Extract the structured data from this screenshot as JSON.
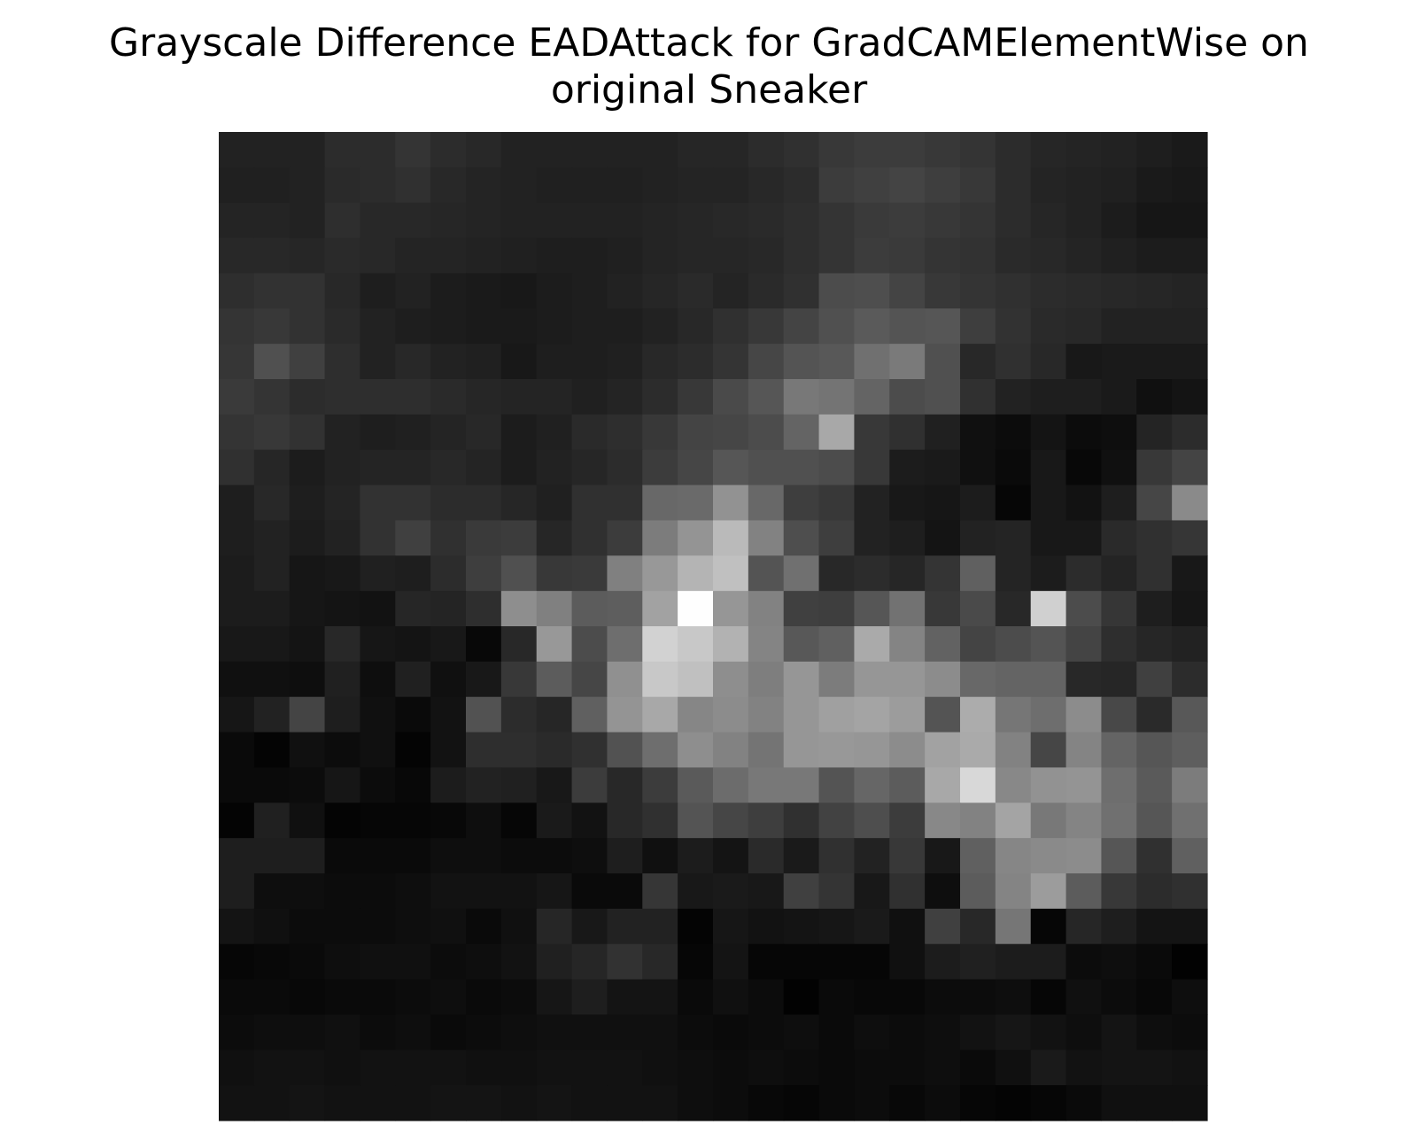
{
  "chart_data": {
    "type": "heatmap",
    "title_lines": [
      "Grayscale Difference EADAttack for GradCAMElementWise on",
      "original Sneaker"
    ],
    "title": "Grayscale Difference EADAttack for GradCAMElementWise on original Sneaker",
    "colormap": "gray",
    "axis": "off",
    "rows": 28,
    "cols": 28,
    "values": [
      [
        34,
        34,
        34,
        44,
        44,
        52,
        44,
        40,
        34,
        34,
        34,
        34,
        34,
        38,
        38,
        44,
        48,
        56,
        60,
        60,
        56,
        52,
        44,
        38,
        36,
        34,
        30,
        26
      ],
      [
        32,
        32,
        34,
        42,
        44,
        48,
        40,
        36,
        34,
        32,
        32,
        32,
        34,
        36,
        36,
        40,
        44,
        60,
        64,
        68,
        62,
        56,
        44,
        36,
        34,
        32,
        26,
        24
      ],
      [
        36,
        36,
        34,
        46,
        40,
        40,
        38,
        36,
        34,
        34,
        34,
        34,
        36,
        38,
        40,
        42,
        46,
        52,
        58,
        60,
        56,
        52,
        44,
        38,
        34,
        28,
        22,
        22
      ],
      [
        40,
        40,
        38,
        42,
        40,
        36,
        36,
        34,
        32,
        30,
        30,
        32,
        36,
        38,
        38,
        40,
        46,
        52,
        60,
        58,
        52,
        50,
        42,
        40,
        36,
        32,
        28,
        28
      ],
      [
        46,
        50,
        50,
        40,
        30,
        34,
        28,
        26,
        24,
        28,
        30,
        34,
        38,
        42,
        36,
        42,
        48,
        76,
        78,
        68,
        56,
        52,
        48,
        44,
        42,
        40,
        38,
        36
      ],
      [
        52,
        56,
        50,
        42,
        34,
        30,
        28,
        26,
        26,
        28,
        30,
        30,
        34,
        40,
        48,
        56,
        68,
        80,
        90,
        84,
        86,
        62,
        50,
        42,
        40,
        34,
        34,
        34
      ],
      [
        54,
        80,
        64,
        46,
        34,
        40,
        34,
        32,
        24,
        30,
        30,
        32,
        40,
        44,
        52,
        70,
        84,
        88,
        112,
        122,
        80,
        40,
        48,
        40,
        24,
        26,
        26,
        26
      ],
      [
        58,
        52,
        44,
        46,
        46,
        46,
        42,
        38,
        36,
        36,
        32,
        36,
        44,
        56,
        74,
        86,
        120,
        116,
        100,
        76,
        80,
        48,
        34,
        30,
        30,
        26,
        16,
        20
      ],
      [
        52,
        56,
        50,
        34,
        30,
        32,
        36,
        40,
        28,
        32,
        42,
        46,
        56,
        68,
        70,
        76,
        100,
        168,
        56,
        48,
        32,
        16,
        12,
        20,
        12,
        14,
        36,
        44
      ],
      [
        48,
        38,
        28,
        34,
        36,
        36,
        40,
        36,
        28,
        34,
        38,
        44,
        60,
        70,
        86,
        80,
        80,
        76,
        56,
        28,
        26,
        16,
        10,
        24,
        8,
        16,
        56,
        68
      ],
      [
        30,
        40,
        30,
        36,
        50,
        50,
        44,
        44,
        38,
        32,
        48,
        48,
        104,
        106,
        146,
        104,
        62,
        56,
        34,
        24,
        22,
        28,
        6,
        24,
        18,
        30,
        70,
        138
      ],
      [
        30,
        34,
        28,
        34,
        50,
        64,
        48,
        58,
        60,
        38,
        48,
        60,
        124,
        148,
        186,
        130,
        78,
        62,
        34,
        30,
        20,
        34,
        36,
        24,
        24,
        42,
        48,
        54
      ],
      [
        28,
        34,
        22,
        24,
        32,
        30,
        44,
        62,
        80,
        56,
        58,
        128,
        152,
        180,
        192,
        84,
        112,
        40,
        44,
        38,
        52,
        96,
        36,
        28,
        44,
        36,
        48,
        24
      ],
      [
        28,
        28,
        22,
        20,
        18,
        38,
        36,
        46,
        142,
        128,
        92,
        94,
        162,
        254,
        150,
        130,
        64,
        62,
        86,
        114,
        56,
        74,
        40,
        208,
        76,
        54,
        30,
        22
      ],
      [
        24,
        24,
        20,
        40,
        22,
        20,
        24,
        8,
        40,
        152,
        76,
        110,
        210,
        200,
        178,
        132,
        88,
        96,
        170,
        132,
        98,
        68,
        76,
        84,
        68,
        46,
        38,
        34
      ],
      [
        16,
        16,
        14,
        32,
        14,
        32,
        16,
        24,
        56,
        92,
        70,
        144,
        200,
        192,
        142,
        126,
        150,
        124,
        150,
        150,
        140,
        104,
        100,
        100,
        40,
        38,
        64,
        44
      ],
      [
        22,
        34,
        68,
        30,
        16,
        10,
        18,
        82,
        44,
        38,
        96,
        148,
        168,
        134,
        140,
        130,
        150,
        160,
        164,
        156,
        84,
        172,
        118,
        110,
        140,
        72,
        42,
        88
      ],
      [
        10,
        4,
        16,
        12,
        16,
        4,
        18,
        46,
        46,
        42,
        48,
        82,
        110,
        142,
        130,
        116,
        150,
        152,
        150,
        140,
        162,
        170,
        130,
        70,
        132,
        100,
        86,
        94
      ],
      [
        10,
        10,
        12,
        22,
        12,
        8,
        28,
        34,
        32,
        24,
        60,
        40,
        60,
        90,
        108,
        120,
        120,
        84,
        102,
        92,
        168,
        216,
        136,
        146,
        148,
        110,
        90,
        124
      ],
      [
        4,
        32,
        16,
        4,
        6,
        6,
        8,
        14,
        6,
        26,
        18,
        40,
        48,
        84,
        70,
        62,
        48,
        66,
        78,
        60,
        136,
        130,
        164,
        120,
        132,
        112,
        86,
        112
      ],
      [
        30,
        30,
        30,
        10,
        10,
        10,
        14,
        14,
        12,
        12,
        14,
        30,
        16,
        28,
        20,
        42,
        26,
        48,
        34,
        56,
        24,
        96,
        134,
        138,
        140,
        86,
        48,
        96
      ],
      [
        30,
        14,
        14,
        12,
        12,
        14,
        18,
        18,
        18,
        22,
        10,
        10,
        54,
        24,
        26,
        24,
        64,
        52,
        24,
        48,
        14,
        92,
        132,
        156,
        92,
        56,
        44,
        48
      ],
      [
        20,
        16,
        12,
        12,
        12,
        14,
        16,
        10,
        16,
        38,
        24,
        34,
        34,
        4,
        22,
        18,
        20,
        22,
        26,
        16,
        64,
        40,
        118,
        6,
        38,
        30,
        20,
        20
      ],
      [
        6,
        8,
        10,
        14,
        16,
        16,
        12,
        14,
        18,
        32,
        38,
        50,
        40,
        6,
        20,
        6,
        6,
        6,
        6,
        16,
        28,
        32,
        28,
        28,
        12,
        14,
        10,
        2
      ],
      [
        10,
        10,
        8,
        10,
        10,
        12,
        14,
        10,
        12,
        22,
        30,
        20,
        20,
        10,
        16,
        12,
        2,
        10,
        8,
        8,
        12,
        12,
        14,
        6,
        16,
        12,
        8,
        14
      ],
      [
        12,
        14,
        14,
        16,
        12,
        14,
        10,
        12,
        14,
        16,
        16,
        16,
        16,
        12,
        10,
        12,
        14,
        10,
        14,
        12,
        14,
        18,
        22,
        18,
        14,
        20,
        14,
        12
      ],
      [
        16,
        18,
        18,
        16,
        18,
        18,
        18,
        16,
        16,
        18,
        18,
        18,
        16,
        14,
        12,
        14,
        12,
        10,
        12,
        12,
        14,
        10,
        16,
        26,
        18,
        20,
        20,
        18
      ],
      [
        18,
        18,
        20,
        18,
        18,
        18,
        20,
        20,
        18,
        20,
        18,
        18,
        18,
        14,
        12,
        8,
        6,
        10,
        12,
        8,
        12,
        6,
        4,
        6,
        10,
        16,
        16,
        16
      ]
    ]
  }
}
